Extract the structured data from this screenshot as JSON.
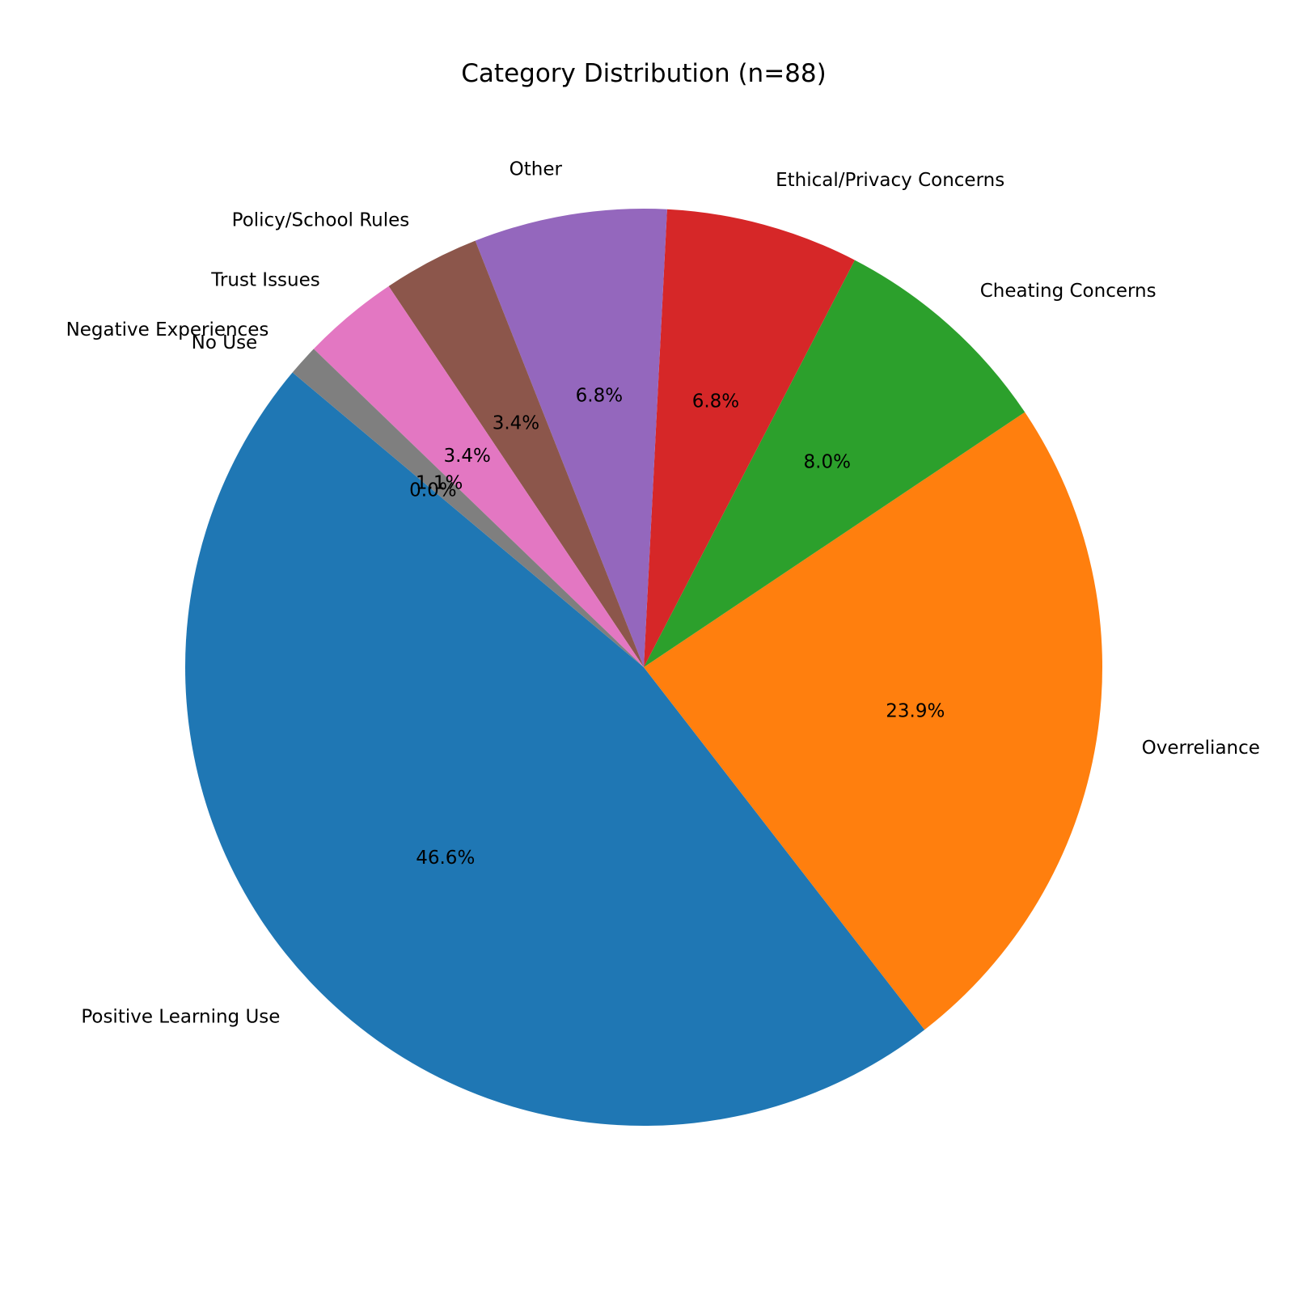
{
  "chart_data": {
    "type": "pie",
    "title": "Category Distribution (n=88)",
    "start_angle_deg": 140,
    "direction": "counterclockwise",
    "slices": [
      {
        "label": "Positive Learning Use",
        "percent": 46.6,
        "percent_label": "46.6%",
        "color": "#1f77b4"
      },
      {
        "label": "Overreliance",
        "percent": 23.9,
        "percent_label": "23.9%",
        "color": "#ff7f0e"
      },
      {
        "label": "Cheating Concerns",
        "percent": 8.0,
        "percent_label": "8.0%",
        "color": "#2ca02c"
      },
      {
        "label": "Ethical/Privacy Concerns",
        "percent": 6.8,
        "percent_label": "6.8%",
        "color": "#d62728"
      },
      {
        "label": "Other",
        "percent": 6.8,
        "percent_label": "6.8%",
        "color": "#9467bd"
      },
      {
        "label": "Policy/School Rules",
        "percent": 3.4,
        "percent_label": "3.4%",
        "color": "#8c564b"
      },
      {
        "label": "Trust Issues",
        "percent": 3.4,
        "percent_label": "3.4%",
        "color": "#e377c2"
      },
      {
        "label": "Negative Experiences",
        "percent": 1.1,
        "percent_label": "1.1%",
        "color": "#7f7f7f"
      },
      {
        "label": "No Use",
        "percent": 0.0,
        "percent_label": "0.0%",
        "color": "#bcbd22"
      }
    ]
  }
}
